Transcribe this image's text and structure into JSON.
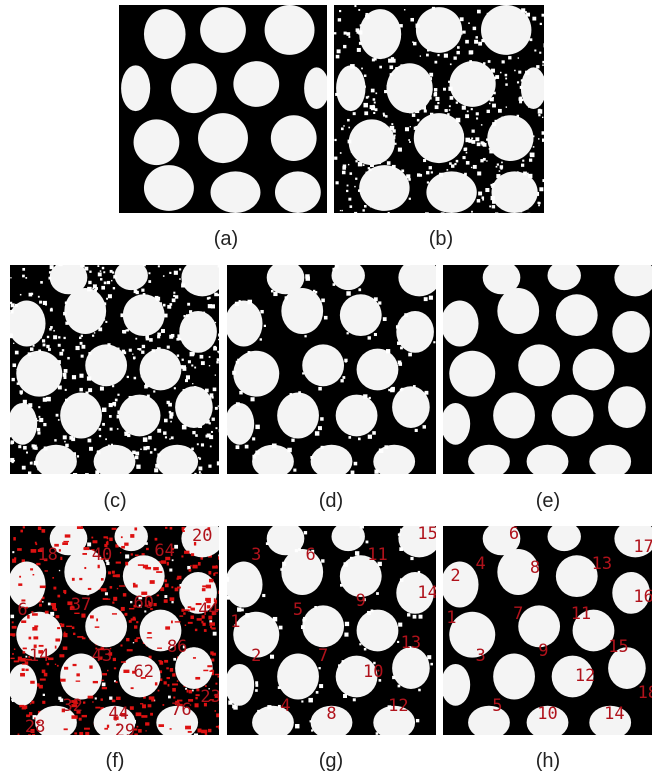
{
  "colors": {
    "background": "#000000",
    "blob": "#f4f4f4",
    "noise": "#ffffff",
    "label": "#b0121b",
    "red_noise": "#dd1111"
  },
  "panels": [
    {
      "id": "a",
      "caption": "(a)",
      "noise": "none",
      "labels": []
    },
    {
      "id": "b",
      "caption": "(b)",
      "noise": "heavy",
      "labels": []
    },
    {
      "id": "c",
      "caption": "(c)",
      "noise": "heavy",
      "labels": []
    },
    {
      "id": "d",
      "caption": "(d)",
      "noise": "edge",
      "labels": []
    },
    {
      "id": "e",
      "caption": "(e)",
      "noise": "none",
      "labels": []
    },
    {
      "id": "f",
      "caption": "(f)",
      "noise": "red",
      "labels": [
        "18",
        "40",
        "64",
        "20",
        "6",
        "37",
        "60",
        "44",
        "14",
        "43",
        "86",
        "62",
        "32",
        "44",
        "76",
        "29",
        "23",
        "28"
      ]
    },
    {
      "id": "g",
      "caption": "(g)",
      "noise": "edge",
      "labels": [
        "3",
        "6",
        "11",
        "15",
        "1",
        "5",
        "9",
        "14",
        "2",
        "7",
        "13",
        "10",
        "4",
        "8",
        "12"
      ]
    },
    {
      "id": "h",
      "caption": "(h)",
      "noise": "none",
      "labels": [
        "6",
        "2",
        "4",
        "8",
        "13",
        "17",
        "16",
        "1",
        "7",
        "11",
        "3",
        "9",
        "15",
        "12",
        "18",
        "5",
        "10",
        "14"
      ]
    }
  ]
}
